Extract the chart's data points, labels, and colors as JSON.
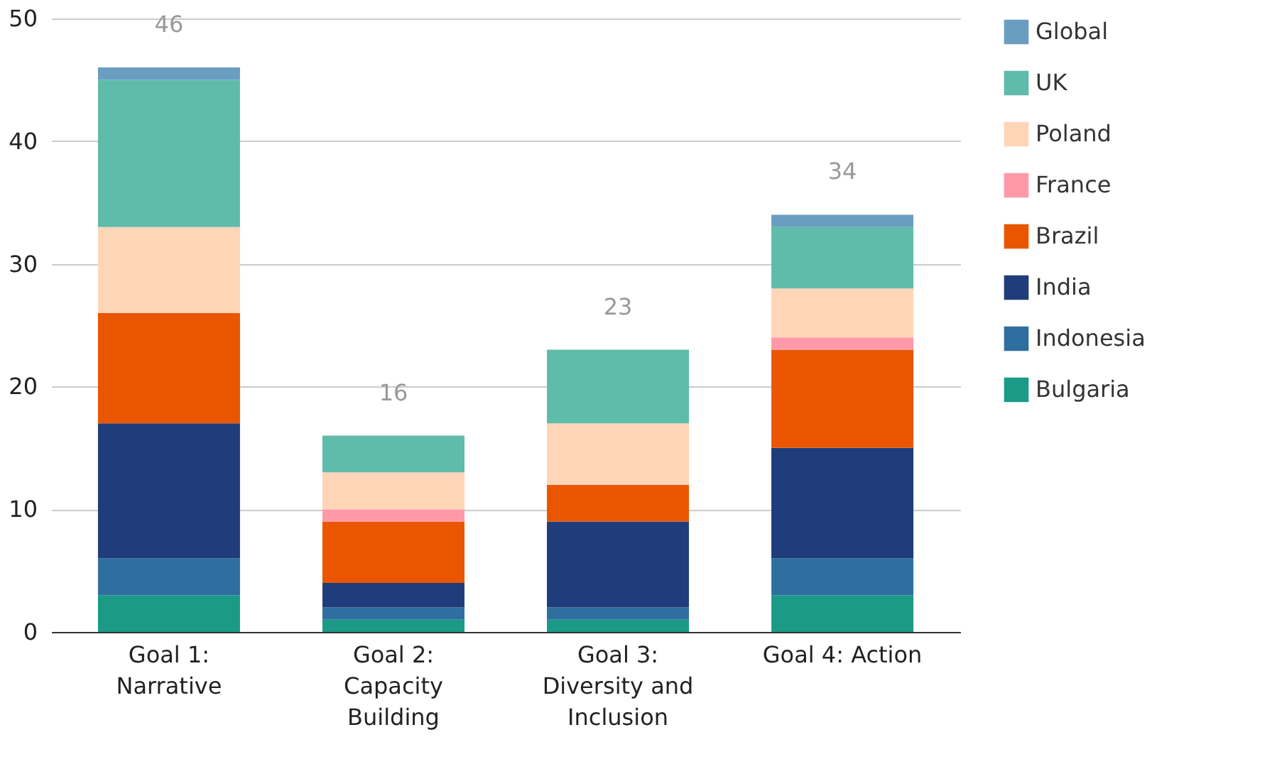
{
  "chart_data": {
    "type": "bar",
    "stacked": true,
    "categories": [
      "Goal 1: Narrative",
      "Goal 2: Capacity Building",
      "Goal 3: Diversity and Inclusion",
      "Goal 4: Action"
    ],
    "series": [
      {
        "name": "Bulgaria",
        "color": "#1a9a87",
        "values": [
          3,
          1,
          1,
          3
        ]
      },
      {
        "name": "Indonesia",
        "color": "#2e6fa0",
        "values": [
          3,
          1,
          1,
          3
        ]
      },
      {
        "name": "India",
        "color": "#1f3d7a",
        "values": [
          11,
          2,
          7,
          9
        ]
      },
      {
        "name": "Brazil",
        "color": "#ea5600",
        "values": [
          9,
          5,
          3,
          8
        ]
      },
      {
        "name": "France",
        "color": "#ff99aa",
        "values": [
          0,
          1,
          0,
          1
        ]
      },
      {
        "name": "Poland",
        "color": "#ffd5b8",
        "values": [
          7,
          3,
          5,
          4
        ]
      },
      {
        "name": "UK",
        "color": "#5fbbaa",
        "values": [
          12,
          3,
          6,
          5
        ]
      },
      {
        "name": "Global",
        "color": "#6a9ec0",
        "values": [
          1,
          0,
          0,
          1
        ]
      }
    ],
    "totals": [
      "46",
      "16",
      "23",
      "34"
    ],
    "ylim": [
      0,
      50
    ],
    "yticks": [
      0,
      10,
      20,
      30,
      40,
      50
    ],
    "grid": "y",
    "legend": "right"
  }
}
